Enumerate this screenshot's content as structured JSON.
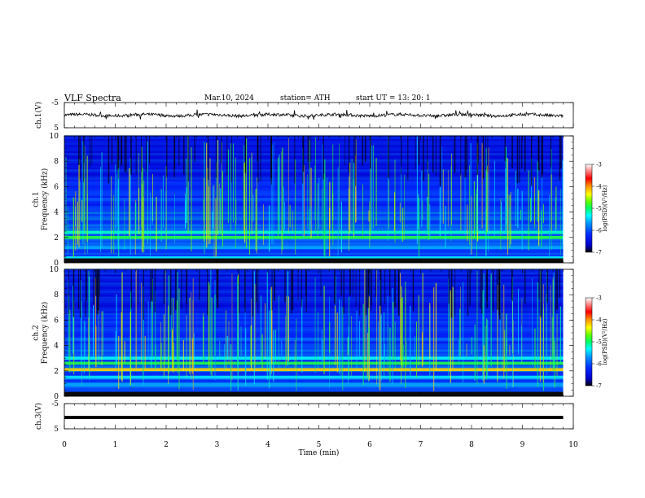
{
  "header": {
    "title": "VLF  Spectra",
    "date": "Mar.10, 2024",
    "station": "station= ATH",
    "start": "start  UT  =   13: 20: 1"
  },
  "colors": {
    "colormap": [
      "#000000",
      "#0000c8",
      "#0028ff",
      "#0096ff",
      "#00ffff",
      "#00ff64",
      "#64ff00",
      "#ffff00",
      "#ff9600",
      "#ff0000",
      "#ffffff"
    ]
  },
  "chart_data": [
    {
      "type": "line",
      "panel": "ch1",
      "ylabel": "ch.1(V)",
      "ylim": [
        -5,
        5
      ],
      "yticks": [
        "5",
        "-5"
      ],
      "xlim": [
        0,
        10
      ],
      "baseline_y": 0,
      "series": [
        {
          "trace": "noisy signal near 0 V",
          "t_end_min": 9.8
        }
      ]
    },
    {
      "type": "heatmap",
      "panel": "ch1-spectrogram",
      "ylabel": "ch.1\nFrequency  (kHz)",
      "ylim": [
        0,
        10
      ],
      "yticks": [
        "0",
        "2",
        "4",
        "6",
        "8",
        "10"
      ],
      "xlim": [
        0,
        10
      ],
      "t_end_min": 9.8,
      "colorbar": {
        "label": "log(PSD)(V²/Hz)",
        "ticks": [
          "-3",
          "-4",
          "-5",
          "-6",
          "-7"
        ],
        "range": [
          -7,
          -3
        ]
      },
      "bands_khz": [
        {
          "f": 2.0,
          "level": -4.9
        },
        {
          "f": 2.4,
          "level": -5.2
        },
        {
          "f": 1.2,
          "level": -5.6
        },
        {
          "f": 0.4,
          "level": -5.4
        },
        {
          "f": 5.0,
          "level": -6.0
        },
        {
          "f": 5.5,
          "level": -6.1
        }
      ]
    },
    {
      "type": "heatmap",
      "panel": "ch2-spectrogram",
      "ylabel": "ch.2\nFrequency  (kHz)",
      "ylim": [
        0,
        10
      ],
      "yticks": [
        "0",
        "2",
        "4",
        "6",
        "8",
        "10"
      ],
      "xlim": [
        0,
        10
      ],
      "t_end_min": 9.8,
      "colorbar": {
        "label": "log(PSD)(V²/Hz)",
        "ticks": [
          "-3",
          "-4",
          "-5",
          "-6",
          "-7"
        ],
        "range": [
          -7,
          -3
        ]
      },
      "bands_khz": [
        {
          "f": 2.1,
          "level": -4.2
        },
        {
          "f": 2.6,
          "level": -4.9
        },
        {
          "f": 3.0,
          "level": -5.3
        },
        {
          "f": 1.5,
          "level": -5.4
        },
        {
          "f": 0.9,
          "level": -5.6
        },
        {
          "f": 4.5,
          "level": -5.9
        }
      ]
    },
    {
      "type": "line",
      "panel": "ch3",
      "ylabel": "ch.3(V)",
      "ylim": [
        -5,
        5
      ],
      "yticks": [
        "5",
        "-5"
      ],
      "xlim": [
        0,
        10
      ],
      "baseline_y": -0.5,
      "xlabel": "Time  (min)",
      "xticks": [
        "0",
        "1",
        "2",
        "3",
        "4",
        "5",
        "6",
        "7",
        "8",
        "9",
        "10"
      ],
      "series": [
        {
          "trace": "flat thick line",
          "t_end_min": 9.8
        }
      ]
    }
  ]
}
